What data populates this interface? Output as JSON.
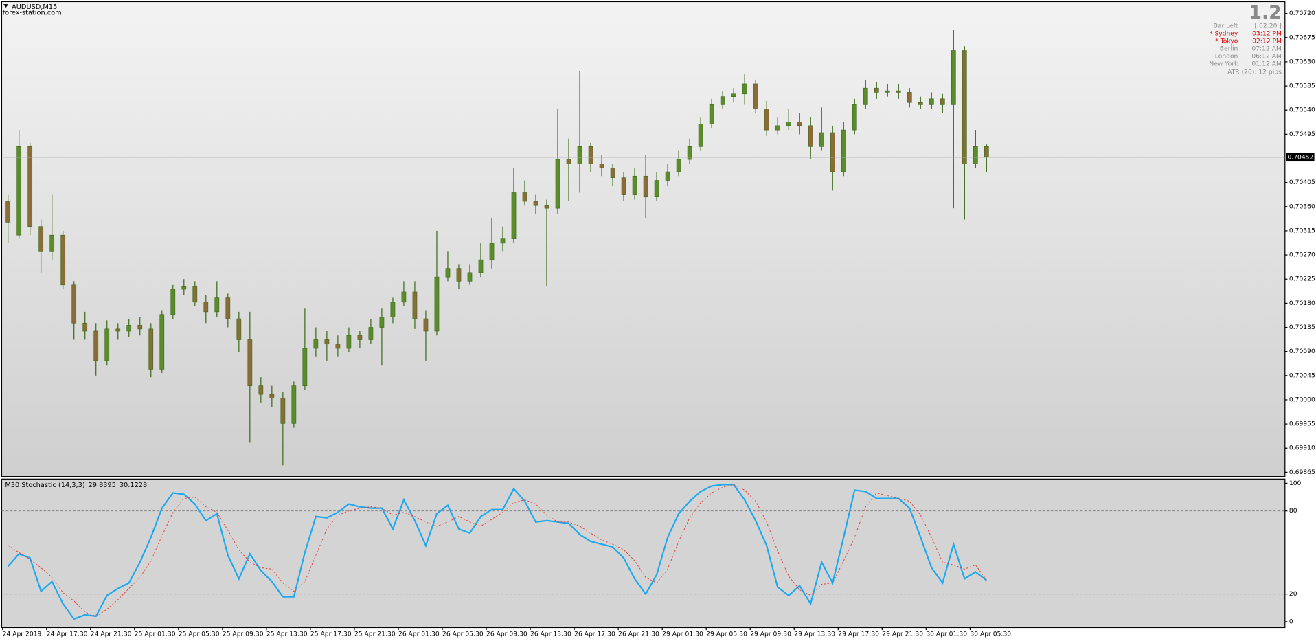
{
  "header": {
    "symbol": "AUDUSD,M15",
    "watermark": "forex-station.com"
  },
  "info": {
    "big": "1.2",
    "rows": [
      [
        "Bar Left",
        "[ 02:20 ]"
      ],
      [
        "* Sydney",
        "03:12 PM"
      ],
      [
        "* Tokyo",
        "02:12 PM"
      ],
      [
        "Berlin",
        "07:12 AM"
      ],
      [
        "London",
        "06:12 AM"
      ],
      [
        "New York",
        "01:12 AM"
      ]
    ],
    "atr": "ATR (20): 12 pips"
  },
  "chart_data": [
    {
      "type": "candlestick",
      "colors": {
        "up": "#5a8c2b",
        "down": "#8a6c36",
        "wick": "#3d6a1a"
      },
      "ylim": [
        0.69857,
        0.70742
      ],
      "yticks": [
        {
          "value": 0.7072,
          "label": "0.70720"
        },
        {
          "value": 0.70675,
          "label": "0.70675"
        },
        {
          "value": 0.7063,
          "label": "0.70630"
        },
        {
          "value": 0.70585,
          "label": "0.70585"
        },
        {
          "value": 0.7054,
          "label": "0.70540"
        },
        {
          "value": 0.70495,
          "label": "0.70495"
        },
        {
          "value": 0.70405,
          "label": "0.70405"
        },
        {
          "value": 0.7036,
          "label": "0.70360"
        },
        {
          "value": 0.70315,
          "label": "0.70315"
        },
        {
          "value": 0.7027,
          "label": "0.70270"
        },
        {
          "value": 0.70225,
          "label": "0.70225"
        },
        {
          "value": 0.7018,
          "label": "0.70180"
        },
        {
          "value": 0.70135,
          "label": "0.70135"
        },
        {
          "value": 0.7009,
          "label": "0.70090"
        },
        {
          "value": 0.70045,
          "label": "0.70045"
        },
        {
          "value": 0.7,
          "label": "0.70000"
        },
        {
          "value": 0.69955,
          "label": "0.69955"
        },
        {
          "value": 0.6991,
          "label": "0.69910"
        },
        {
          "value": 0.69865,
          "label": "0.69865"
        }
      ],
      "last_price": 0.70452,
      "open": [
        0.7037,
        0.70307,
        0.70472,
        0.70323,
        0.70276,
        0.70307,
        0.70214,
        0.70143,
        0.70128,
        0.70073,
        0.70132,
        0.70128,
        0.70139,
        0.70132,
        0.70057,
        0.70159,
        0.70206,
        0.70211,
        0.70182,
        0.70164,
        0.7019,
        0.70151,
        0.70112,
        0.70026,
        0.7001,
        0.70003,
        0.69956,
        0.70026,
        0.70096,
        0.70112,
        0.70104,
        0.70096,
        0.7012,
        0.70112,
        0.70135,
        0.70154,
        0.70182,
        0.70201,
        0.70151,
        0.70128,
        0.70229,
        0.70245,
        0.70221,
        0.70237,
        0.70261,
        0.70292,
        0.703,
        0.70386,
        0.7037,
        0.70362,
        0.70357,
        0.70448,
        0.7044,
        0.70472,
        0.7044,
        0.70432,
        0.70414,
        0.70382,
        0.70417,
        0.70378,
        0.70409,
        0.70425,
        0.70448,
        0.70472,
        0.70514,
        0.7055,
        0.70565,
        0.7057,
        0.70589,
        0.70542,
        0.70503,
        0.70511,
        0.70518,
        0.70511,
        0.70472,
        0.70498,
        0.70425,
        0.70503,
        0.7055,
        0.70581,
        0.70573,
        0.70576,
        0.70573,
        0.70554,
        0.7055,
        0.70561,
        0.7055,
        0.70651,
        0.7044,
        0.70472
      ],
      "high": [
        0.70382,
        0.70503,
        0.70479,
        0.70336,
        0.70382,
        0.70315,
        0.70221,
        0.70164,
        0.70143,
        0.70148,
        0.70143,
        0.70151,
        0.70154,
        0.70143,
        0.70167,
        0.70214,
        0.70225,
        0.70221,
        0.70195,
        0.70221,
        0.70198,
        0.70164,
        0.70164,
        0.70042,
        0.70026,
        0.70014,
        0.70034,
        0.7017,
        0.70135,
        0.70128,
        0.7012,
        0.70135,
        0.70128,
        0.70151,
        0.7017,
        0.7019,
        0.70221,
        0.70221,
        0.70167,
        0.70315,
        0.70276,
        0.70253,
        0.70253,
        0.70292,
        0.70339,
        0.70323,
        0.70432,
        0.70409,
        0.70382,
        0.70373,
        0.70542,
        0.70487,
        0.70612,
        0.70479,
        0.70456,
        0.7044,
        0.70425,
        0.70432,
        0.70456,
        0.70425,
        0.7044,
        0.70464,
        0.70487,
        0.70526,
        0.70561,
        0.70576,
        0.70581,
        0.70607,
        0.70596,
        0.70557,
        0.70526,
        0.70542,
        0.70534,
        0.70526,
        0.70545,
        0.70511,
        0.70518,
        0.70561,
        0.70596,
        0.70592,
        0.70589,
        0.70589,
        0.70581,
        0.70565,
        0.70573,
        0.7057,
        0.7069,
        0.70659,
        0.70503,
        0.70476
      ],
      "low": [
        0.70292,
        0.703,
        0.70307,
        0.70237,
        0.70261,
        0.70206,
        0.70112,
        0.70112,
        0.70045,
        0.70065,
        0.70112,
        0.70117,
        0.7012,
        0.70042,
        0.7005,
        0.70151,
        0.70195,
        0.70175,
        0.70143,
        0.70154,
        0.70135,
        0.70089,
        0.6992,
        0.69995,
        0.69987,
        0.69878,
        0.69948,
        0.70018,
        0.70081,
        0.70073,
        0.70081,
        0.70089,
        0.70096,
        0.70104,
        0.70065,
        0.70143,
        0.70175,
        0.70132,
        0.70073,
        0.7012,
        0.70221,
        0.70206,
        0.70214,
        0.70229,
        0.70245,
        0.70276,
        0.70292,
        0.70362,
        0.70346,
        0.70211,
        0.70346,
        0.7037,
        0.70386,
        0.70425,
        0.70417,
        0.70398,
        0.7037,
        0.70373,
        0.70339,
        0.7037,
        0.70398,
        0.70417,
        0.7044,
        0.70464,
        0.70507,
        0.70542,
        0.70554,
        0.7055,
        0.70534,
        0.70492,
        0.70495,
        0.70503,
        0.70495,
        0.70448,
        0.70464,
        0.7039,
        0.70417,
        0.70495,
        0.70542,
        0.70561,
        0.70565,
        0.70561,
        0.70545,
        0.70542,
        0.70542,
        0.70534,
        0.70357,
        0.70336,
        0.70432,
        0.70425
      ],
      "close": [
        0.70331,
        0.70472,
        0.70323,
        0.70276,
        0.70307,
        0.70214,
        0.70143,
        0.70128,
        0.70073,
        0.70132,
        0.70128,
        0.70139,
        0.70132,
        0.70057,
        0.70159,
        0.70206,
        0.70211,
        0.70182,
        0.70164,
        0.7019,
        0.70151,
        0.70112,
        0.70026,
        0.7001,
        0.70003,
        0.69956,
        0.70026,
        0.70096,
        0.70112,
        0.70104,
        0.70096,
        0.7012,
        0.70112,
        0.70135,
        0.70154,
        0.70182,
        0.70201,
        0.70151,
        0.70128,
        0.70229,
        0.70245,
        0.70221,
        0.70237,
        0.70261,
        0.70292,
        0.703,
        0.70386,
        0.7037,
        0.70362,
        0.70357,
        0.70448,
        0.7044,
        0.70472,
        0.7044,
        0.70432,
        0.70414,
        0.70382,
        0.70417,
        0.70378,
        0.70409,
        0.70425,
        0.70448,
        0.70472,
        0.70514,
        0.7055,
        0.70565,
        0.7057,
        0.70589,
        0.70542,
        0.70503,
        0.70511,
        0.70518,
        0.70511,
        0.70472,
        0.70498,
        0.70425,
        0.70503,
        0.7055,
        0.70581,
        0.70573,
        0.70576,
        0.70573,
        0.70554,
        0.7055,
        0.70561,
        0.7055,
        0.70651,
        0.7044,
        0.70472,
        0.70452
      ]
    },
    {
      "type": "line",
      "title": "M30 Stochastic (14,3,3)",
      "categories": [
        "24 Apr 2019",
        null,
        null,
        null,
        "24 Apr 17:30",
        null,
        null,
        null,
        "24 Apr 21:30",
        null,
        null,
        null,
        "25 Apr 01:30",
        null,
        null,
        null,
        "25 Apr 05:30",
        null,
        null,
        null,
        "25 Apr 09:30",
        null,
        null,
        null,
        "25 Apr 13:30",
        null,
        null,
        null,
        "25 Apr 17:30",
        null,
        null,
        null,
        "25 Apr 21:30",
        null,
        null,
        null,
        "26 Apr 01:30",
        null,
        null,
        null,
        "26 Apr 05:30",
        null,
        null,
        null,
        "26 Apr 09:30",
        null,
        null,
        null,
        "26 Apr 13:30",
        null,
        null,
        null,
        "26 Apr 17:30",
        null,
        null,
        null,
        "26 Apr 21:30",
        null,
        null,
        null,
        "29 Apr 01:30",
        null,
        null,
        null,
        "29 Apr 05:30",
        null,
        null,
        null,
        "29 Apr 09:30",
        null,
        null,
        null,
        "29 Apr 13:30",
        null,
        null,
        null,
        "29 Apr 17:30",
        null,
        null,
        null,
        "29 Apr 21:30",
        null,
        null,
        null,
        "30 Apr 01:30",
        null,
        null,
        null,
        "30 Apr 05:30",
        null
      ],
      "ylim": [
        -4.2,
        103
      ],
      "yticks": [
        0,
        20,
        80,
        100
      ],
      "levels": [
        80,
        20
      ],
      "series": [
        {
          "color": "#1ea8f0",
          "values": [
            40,
            49,
            46,
            22,
            29,
            13,
            2,
            5,
            4,
            19,
            24,
            28,
            43,
            61,
            82,
            93,
            92,
            85,
            73,
            78,
            48,
            31,
            49,
            37,
            29,
            18,
            18,
            50,
            76,
            75,
            79,
            85,
            83,
            82,
            82,
            67,
            88,
            73,
            55,
            78,
            84,
            67,
            64,
            76,
            81,
            81,
            96,
            87,
            72,
            73,
            72,
            71,
            63,
            58,
            56,
            54,
            46,
            31,
            20,
            34,
            61,
            78,
            87,
            94,
            98,
            99,
            99,
            88,
            73,
            55,
            25,
            19,
            26,
            13,
            43,
            28,
            61,
            95,
            94,
            89,
            89,
            89,
            82,
            61,
            39,
            28,
            56,
            31,
            36,
            29.8395
          ]
        },
        {
          "color": "#e0403a",
          "dashed": true,
          "values": [
            55,
            50,
            45,
            39,
            32,
            21,
            15,
            7,
            4,
            9,
            16,
            24,
            32,
            44,
            62,
            79,
            89,
            90,
            83,
            79,
            66,
            52,
            43,
            39,
            38,
            28,
            22,
            29,
            48,
            67,
            77,
            80,
            82,
            83,
            82,
            77,
            79,
            76,
            72,
            69,
            72,
            76,
            72,
            69,
            74,
            79,
            86,
            88,
            85,
            77,
            72,
            72,
            69,
            64,
            59,
            56,
            52,
            44,
            32,
            28,
            38,
            58,
            75,
            86,
            93,
            97,
            99,
            95,
            87,
            72,
            51,
            33,
            23,
            19,
            27,
            28,
            44,
            61,
            83,
            93,
            91,
            89,
            87,
            77,
            61,
            43,
            41,
            38,
            41,
            30.1228
          ]
        }
      ]
    }
  ]
}
